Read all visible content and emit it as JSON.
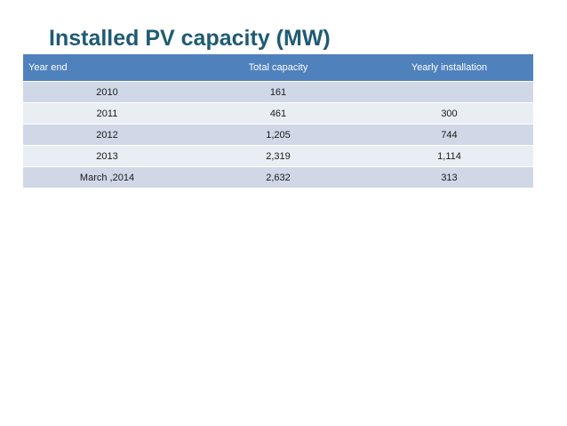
{
  "slide": {
    "title": "Installed PV capacity (MW)"
  },
  "table": {
    "headers": [
      "Year end",
      "Total capacity",
      "Yearly installation"
    ],
    "rows": [
      [
        "2010",
        "161",
        ""
      ],
      [
        "2011",
        "461",
        "300"
      ],
      [
        "2012",
        "1,205",
        "744"
      ],
      [
        "2013",
        "2,319",
        "1,114"
      ],
      [
        "March ,2014",
        "2,632",
        "313"
      ]
    ]
  },
  "colors": {
    "title": "#1f5b73",
    "header_background": "#4f81bd",
    "row_band_dark": "#d0d8e8",
    "row_band_light": "#e9edf4"
  }
}
